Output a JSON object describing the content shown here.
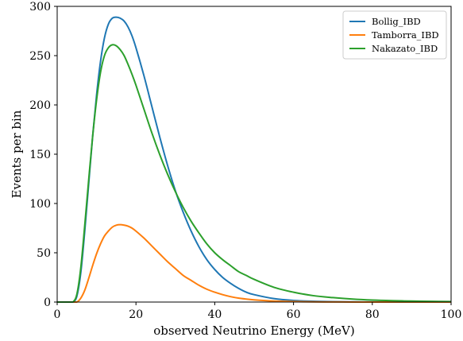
{
  "chart_data": {
    "type": "line",
    "title": "",
    "xlabel": "observed Neutrino Energy (MeV)",
    "ylabel": "Events per bin",
    "xlim": [
      0,
      100
    ],
    "ylim": [
      0,
      300
    ],
    "xticks": [
      0,
      20,
      40,
      60,
      80,
      100
    ],
    "yticks": [
      0,
      50,
      100,
      150,
      200,
      250,
      300
    ],
    "grid": false,
    "legend_position": "top-right",
    "x": [
      0,
      3,
      4,
      5,
      6,
      7,
      8,
      9,
      10,
      11,
      12,
      13,
      14,
      15,
      16,
      17,
      18,
      19,
      20,
      22,
      24,
      26,
      28,
      30,
      32,
      34,
      36,
      38,
      40,
      42,
      44,
      46,
      48,
      50,
      55,
      60,
      65,
      70,
      75,
      80,
      85,
      90,
      95,
      100
    ],
    "series": [
      {
        "name": "Bollig_IBD",
        "color": "#1f77b4",
        "values": [
          0,
          0,
          0,
          6,
          30,
          72,
          120,
          168,
          210,
          244,
          268,
          282,
          288,
          289,
          288,
          285,
          279,
          270,
          258,
          230,
          199,
          168,
          139,
          113,
          91,
          72,
          56,
          43,
          33,
          25,
          19,
          14,
          10,
          7.5,
          3.5,
          1.6,
          0.8,
          0.4,
          0.2,
          0.1,
          0.05,
          0.02,
          0.01,
          0
        ]
      },
      {
        "name": "Tamborra_IBD",
        "color": "#ff7f0e",
        "values": [
          0,
          0,
          0,
          0,
          4,
          12,
          24,
          37,
          49,
          59,
          67,
          72,
          76,
          78,
          78.5,
          78,
          77,
          75,
          72,
          65,
          57,
          49,
          41,
          34,
          27,
          22,
          17,
          13,
          10,
          7.5,
          5.5,
          4,
          3,
          2.2,
          1,
          0.5,
          0.2,
          0.1,
          0.05,
          0.02,
          0.01,
          0,
          0,
          0
        ]
      },
      {
        "name": "Nakazato_IBD",
        "color": "#2ca02c",
        "values": [
          0,
          0,
          0,
          8,
          35,
          78,
          124,
          168,
          205,
          233,
          250,
          258,
          261,
          260,
          256,
          250,
          241,
          231,
          220,
          196,
          172,
          150,
          130,
          112,
          96,
          82,
          70,
          59,
          50,
          43,
          37,
          31,
          27,
          23,
          15,
          10,
          6.5,
          4.5,
          3,
          2,
          1.4,
          1,
          0.7,
          0.5
        ]
      }
    ]
  }
}
